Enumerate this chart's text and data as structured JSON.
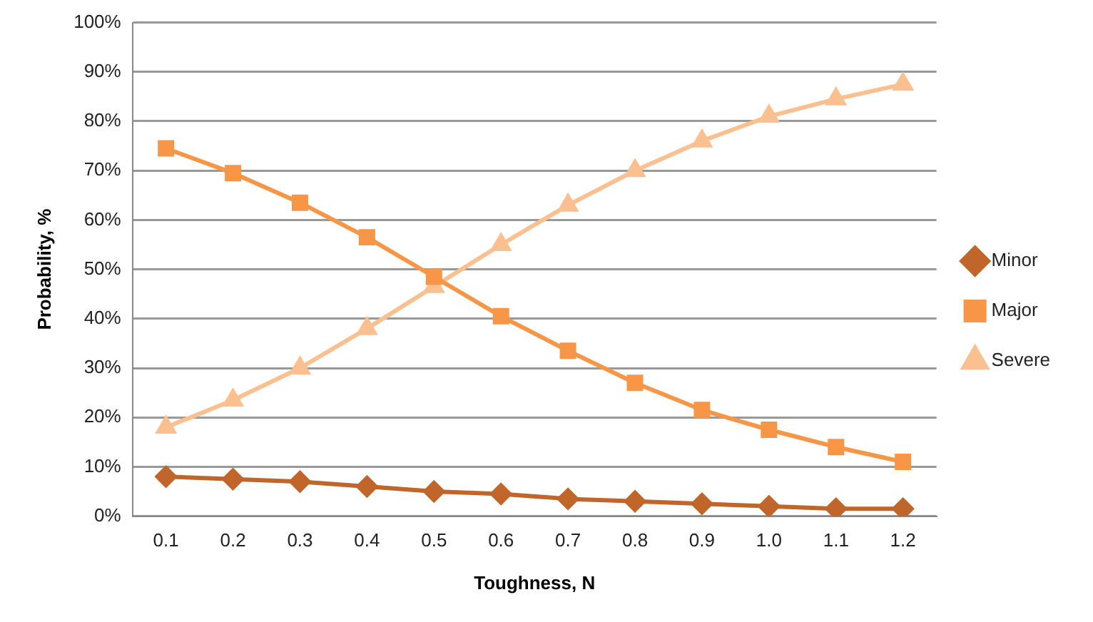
{
  "chart_data": {
    "type": "line",
    "xlabel": "Toughness, N",
    "ylabel": "Probability, %",
    "categories": [
      "0.1",
      "0.2",
      "0.3",
      "0.4",
      "0.5",
      "0.6",
      "0.7",
      "0.8",
      "0.9",
      "1.0",
      "1.1",
      "1.2"
    ],
    "series": [
      {
        "name": "Minor",
        "color": "#c0662a",
        "marker": "diamond",
        "values": [
          8,
          7.5,
          7,
          6,
          5,
          4.5,
          3.5,
          3,
          2.5,
          2,
          1.5,
          1.5
        ]
      },
      {
        "name": "Major",
        "color": "#f79646",
        "marker": "square",
        "values": [
          74.5,
          69.5,
          63.5,
          56.5,
          48.5,
          40.5,
          33.5,
          27,
          21.5,
          17.5,
          14,
          11
        ]
      },
      {
        "name": "Severe",
        "color": "#fac090",
        "marker": "triangle",
        "values": [
          18,
          23.5,
          30,
          38,
          46.5,
          55,
          63,
          70,
          76,
          81,
          84.5,
          87.5
        ]
      }
    ],
    "ylim": [
      0,
      100
    ],
    "yticks": [
      {
        "value": 0,
        "label": "0%"
      },
      {
        "value": 10,
        "label": "10%"
      },
      {
        "value": 20,
        "label": "20%"
      },
      {
        "value": 30,
        "label": "30%"
      },
      {
        "value": 40,
        "label": "40%"
      },
      {
        "value": 50,
        "label": "50%"
      },
      {
        "value": 60,
        "label": "60%"
      },
      {
        "value": 70,
        "label": "70%"
      },
      {
        "value": 80,
        "label": "80%"
      },
      {
        "value": 90,
        "label": "90%"
      },
      {
        "value": 100,
        "label": "100%"
      }
    ],
    "grid": "y",
    "legend": "right",
    "line_style": "solid"
  }
}
